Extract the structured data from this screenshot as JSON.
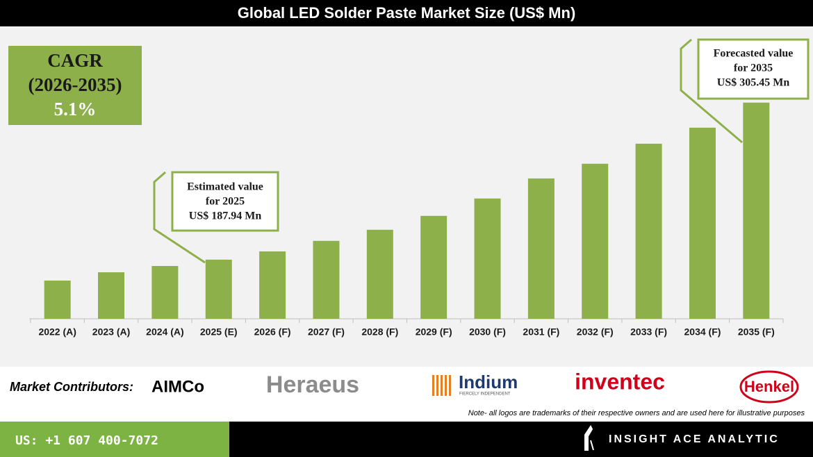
{
  "chart_data": {
    "type": "bar",
    "title": "Global LED Solder Paste Market Size (US$ Mn)",
    "categories": [
      "2022 (A)",
      "2023 (A)",
      "2024 (A)",
      "2025 (E)",
      "2026 (F)",
      "2027 (F)",
      "2028 (F)",
      "2029 (F)",
      "2030 (F)",
      "2031 (F)",
      "2032 (F)",
      "2033 (F)",
      "2034 (F)",
      "2035 (F)"
    ],
    "values": [
      172.3,
      178.5,
      183.2,
      187.94,
      194.1,
      202.0,
      210.3,
      220.7,
      233.7,
      248.7,
      259.7,
      274.7,
      286.7,
      305.45
    ],
    "color": "#8db04a",
    "ylim": [
      143.7,
      350
    ],
    "annotations": [
      {
        "lines": [
          "Estimated value",
          "for 2025",
          "US$ 187.94 Mn"
        ]
      },
      {
        "lines": [
          "Forecasted value",
          "for 2035",
          "US$ 305.45 Mn"
        ]
      }
    ]
  },
  "cagr": {
    "lines": [
      "CAGR",
      "(2026-2035)",
      "5.1%"
    ]
  },
  "contributors": {
    "label": "Market Contributors:",
    "logos": [
      "AIMCo",
      "Heraeus",
      "Indium",
      "FIERCELY INDEPENDENT",
      "inventec",
      "Henkel"
    ],
    "note": "Note- all logos are trademarks of their respective owners and are used here for illustrative purposes"
  },
  "footer": {
    "phone": "US: +1 607 400-7072",
    "brand": "INSIGHT ACE ANALYTIC"
  }
}
